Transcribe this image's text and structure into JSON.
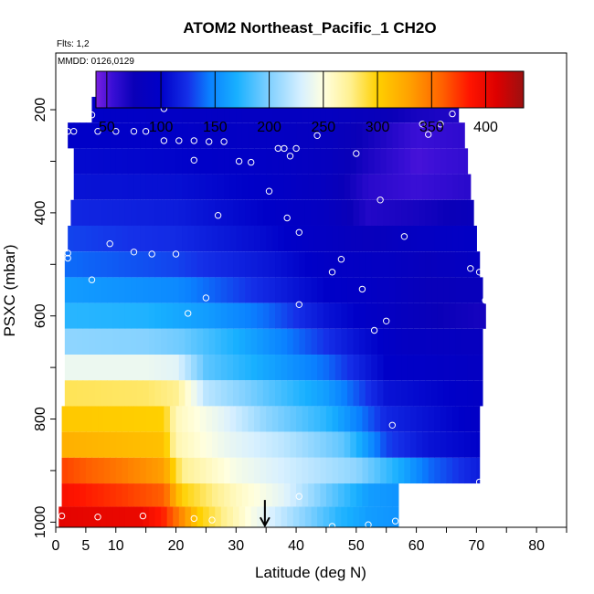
{
  "chart_data": {
    "type": "heatmap",
    "title": "ATOM2 Northeast_Pacific_1 CH2O",
    "annotations": {
      "flights": "Flts: 1,2",
      "dates": "MMDD: 0126,0129"
    },
    "xlabel": "Latitude (deg N)",
    "ylabel": "PSXC (mbar)",
    "xlim": [
      0,
      85
    ],
    "ylim": [
      1010,
      90
    ],
    "x_ticks": [
      0,
      5,
      10,
      20,
      30,
      40,
      50,
      60,
      70,
      80
    ],
    "y_ticks": [
      200,
      400,
      600,
      800,
      1000
    ],
    "colorbar": {
      "min": 40,
      "max": 435,
      "ticks": [
        50,
        100,
        150,
        200,
        250,
        300,
        350,
        400
      ],
      "bounds": [
        40,
        50,
        100,
        150,
        200,
        250,
        300,
        350,
        400,
        435
      ],
      "stops": [
        {
          "v": 40,
          "c": "#7a1fe0"
        },
        {
          "v": 55,
          "c": "#3a0fd6"
        },
        {
          "v": 75,
          "c": "#0a00b8"
        },
        {
          "v": 100,
          "c": "#0000c8"
        },
        {
          "v": 125,
          "c": "#1530e8"
        },
        {
          "v": 145,
          "c": "#0a80ff"
        },
        {
          "v": 170,
          "c": "#18b0ff"
        },
        {
          "v": 200,
          "c": "#80d0ff"
        },
        {
          "v": 230,
          "c": "#d8f0ff"
        },
        {
          "v": 250,
          "c": "#ffffe0"
        },
        {
          "v": 275,
          "c": "#fff090"
        },
        {
          "v": 300,
          "c": "#ffd000"
        },
        {
          "v": 330,
          "c": "#ffa000"
        },
        {
          "v": 360,
          "c": "#ff6000"
        },
        {
          "v": 385,
          "c": "#ff1500"
        },
        {
          "v": 410,
          "c": "#dd0000"
        },
        {
          "v": 435,
          "c": "#9c1010"
        }
      ]
    },
    "pressure_levels": [
      {
        "p": 200,
        "lat_min": 6,
        "lat_max": 67,
        "vals": [
          [
            6,
            98
          ],
          [
            20,
            95
          ],
          [
            35,
            90
          ],
          [
            45,
            88
          ],
          [
            52,
            80
          ],
          [
            60,
            70
          ],
          [
            67,
            66
          ]
        ]
      },
      {
        "p": 250,
        "lat_min": 2,
        "lat_max": 68,
        "vals": [
          [
            2,
            100
          ],
          [
            20,
            97
          ],
          [
            35,
            92
          ],
          [
            45,
            85
          ],
          [
            52,
            72
          ],
          [
            60,
            55
          ],
          [
            68,
            60
          ]
        ]
      },
      {
        "p": 300,
        "lat_min": 3,
        "lat_max": 68.5,
        "vals": [
          [
            3,
            105
          ],
          [
            20,
            102
          ],
          [
            35,
            95
          ],
          [
            45,
            85
          ],
          [
            52,
            68
          ],
          [
            60,
            52
          ],
          [
            68,
            58
          ]
        ]
      },
      {
        "p": 350,
        "lat_min": 3,
        "lat_max": 69,
        "vals": [
          [
            3,
            110
          ],
          [
            20,
            108
          ],
          [
            35,
            98
          ],
          [
            45,
            85
          ],
          [
            52,
            62
          ],
          [
            60,
            55
          ],
          [
            69,
            62
          ]
        ]
      },
      {
        "p": 400,
        "lat_min": 2.5,
        "lat_max": 69.5,
        "vals": [
          [
            2.5,
            120
          ],
          [
            20,
            115
          ],
          [
            35,
            100
          ],
          [
            45,
            88
          ],
          [
            52,
            65
          ],
          [
            60,
            70
          ],
          [
            69,
            78
          ]
        ]
      },
      {
        "p": 450,
        "lat_min": 2,
        "lat_max": 70,
        "vals": [
          [
            2,
            130
          ],
          [
            20,
            122
          ],
          [
            35,
            105
          ],
          [
            45,
            90
          ],
          [
            52,
            80
          ],
          [
            60,
            90
          ],
          [
            70,
            95
          ]
        ]
      },
      {
        "p": 500,
        "lat_min": 1.5,
        "lat_max": 70.5,
        "vals": [
          [
            1.5,
            140
          ],
          [
            20,
            130
          ],
          [
            35,
            112
          ],
          [
            45,
            95
          ],
          [
            55,
            90
          ],
          [
            62,
            82
          ],
          [
            70,
            90
          ]
        ]
      },
      {
        "p": 550,
        "lat_min": 1.5,
        "lat_max": 71,
        "vals": [
          [
            1.5,
            160
          ],
          [
            20,
            150
          ],
          [
            35,
            120
          ],
          [
            45,
            100
          ],
          [
            55,
            90
          ],
          [
            62,
            78
          ],
          [
            71,
            80
          ]
        ]
      },
      {
        "p": 600,
        "lat_min": 1.5,
        "lat_max": 71.5,
        "vals": [
          [
            1.5,
            175
          ],
          [
            15,
            172
          ],
          [
            25,
            160
          ],
          [
            35,
            140
          ],
          [
            45,
            110
          ],
          [
            55,
            90
          ],
          [
            64,
            75
          ],
          [
            71.5,
            70
          ]
        ]
      },
      {
        "p": 650,
        "lat_min": 1.5,
        "lat_max": 71,
        "vals": [
          [
            1.5,
            205
          ],
          [
            15,
            202
          ],
          [
            21,
            195
          ],
          [
            30,
            170
          ],
          [
            40,
            140
          ],
          [
            50,
            110
          ],
          [
            58,
            90
          ],
          [
            71,
            85
          ]
        ]
      },
      {
        "p": 700,
        "lat_min": 1.5,
        "lat_max": 71,
        "vals": [
          [
            1.5,
            240
          ],
          [
            15,
            240
          ],
          [
            20,
            235
          ],
          [
            25,
            190
          ],
          [
            35,
            165
          ],
          [
            45,
            140
          ],
          [
            55,
            100
          ],
          [
            71,
            90
          ]
        ]
      },
      {
        "p": 750,
        "lat_min": 1.5,
        "lat_max": 71,
        "vals": [
          [
            1.5,
            285
          ],
          [
            15,
            282
          ],
          [
            20,
            275
          ],
          [
            25,
            220
          ],
          [
            35,
            190
          ],
          [
            45,
            160
          ],
          [
            55,
            110
          ],
          [
            71,
            95
          ]
        ]
      },
      {
        "p": 800,
        "lat_min": 1,
        "lat_max": 70.5,
        "vals": [
          [
            1,
            305
          ],
          [
            18,
            300
          ],
          [
            20,
            262
          ],
          [
            28,
            235
          ],
          [
            35,
            205
          ],
          [
            45,
            175
          ],
          [
            55,
            120
          ],
          [
            70.5,
            95
          ]
        ]
      },
      {
        "p": 850,
        "lat_min": 1,
        "lat_max": 70.5,
        "vals": [
          [
            1,
            320
          ],
          [
            18,
            310
          ],
          [
            20,
            265
          ],
          [
            28,
            240
          ],
          [
            38,
            220
          ],
          [
            48,
            190
          ],
          [
            55,
            130
          ],
          [
            62,
            110
          ],
          [
            70.5,
            100
          ]
        ]
      },
      {
        "p": 900,
        "lat_min": 1,
        "lat_max": 70.5,
        "vals": [
          [
            1,
            370
          ],
          [
            10,
            350
          ],
          [
            18,
            330
          ],
          [
            21,
            275
          ],
          [
            30,
            245
          ],
          [
            40,
            225
          ],
          [
            50,
            205
          ],
          [
            56,
            175
          ],
          [
            62,
            140
          ],
          [
            70.5,
            115
          ]
        ]
      },
      {
        "p": 950,
        "lat_min": 1,
        "lat_max": 57,
        "vals": [
          [
            1,
            390
          ],
          [
            10,
            375
          ],
          [
            18,
            360
          ],
          [
            21,
            300
          ],
          [
            30,
            260
          ],
          [
            38,
            235
          ],
          [
            45,
            195
          ],
          [
            52,
            160
          ],
          [
            57,
            155
          ]
        ]
      },
      {
        "p": 990,
        "lat_min": 0.5,
        "lat_max": 57,
        "vals": [
          [
            0.5,
            405
          ],
          [
            14,
            400
          ],
          [
            18,
            380
          ],
          [
            24,
            300
          ],
          [
            32,
            250
          ],
          [
            40,
            210
          ],
          [
            47,
            175
          ],
          [
            52,
            160
          ],
          [
            57,
            155
          ]
        ]
      }
    ],
    "flight_track_points": [
      [
        6,
        210
      ],
      [
        18,
        198
      ],
      [
        30.5,
        182
      ],
      [
        2,
        242
      ],
      [
        3,
        242
      ],
      [
        7,
        242
      ],
      [
        10,
        242
      ],
      [
        13,
        242
      ],
      [
        15,
        242
      ],
      [
        18,
        260
      ],
      [
        20.5,
        260
      ],
      [
        23,
        260
      ],
      [
        25.5,
        262
      ],
      [
        28,
        262
      ],
      [
        23,
        298
      ],
      [
        30.5,
        300
      ],
      [
        32.5,
        302
      ],
      [
        37,
        275
      ],
      [
        38,
        275
      ],
      [
        40,
        275
      ],
      [
        39,
        290
      ],
      [
        43.5,
        250
      ],
      [
        50,
        285
      ],
      [
        61,
        228
      ],
      [
        62,
        248
      ],
      [
        64,
        228
      ],
      [
        66,
        208
      ],
      [
        35.5,
        358
      ],
      [
        54,
        375
      ],
      [
        27,
        405
      ],
      [
        38.5,
        410
      ],
      [
        40.5,
        438
      ],
      [
        58,
        446
      ],
      [
        2,
        478
      ],
      [
        2,
        488
      ],
      [
        9,
        460
      ],
      [
        13,
        476
      ],
      [
        16,
        480
      ],
      [
        20,
        480
      ],
      [
        47.5,
        490
      ],
      [
        46,
        515
      ],
      [
        69,
        508
      ],
      [
        70.5,
        515
      ],
      [
        6,
        530
      ],
      [
        25,
        565
      ],
      [
        51,
        548
      ],
      [
        71.5,
        570
      ],
      [
        22,
        595
      ],
      [
        40.5,
        578
      ],
      [
        55,
        610
      ],
      [
        53,
        628
      ],
      [
        56,
        812
      ],
      [
        70.5,
        922
      ],
      [
        40.5,
        950
      ],
      [
        1,
        988
      ],
      [
        7,
        990
      ],
      [
        14.5,
        988
      ],
      [
        23,
        993
      ],
      [
        26,
        996
      ],
      [
        46,
        1008
      ],
      [
        52,
        1005
      ],
      [
        56.5,
        998
      ]
    ],
    "flight_direction_marker": {
      "lat": 34.8,
      "p_start": 957,
      "p_end": 1005
    }
  }
}
